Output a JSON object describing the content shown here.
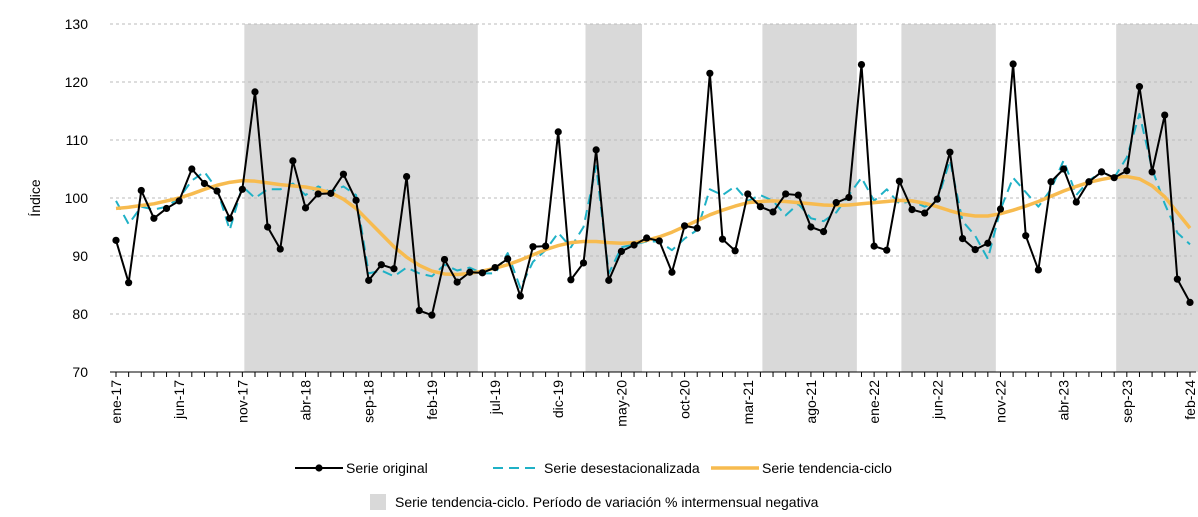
{
  "chart_data": {
    "type": "line",
    "y_label": "Índice",
    "categories": [
      "ene-17",
      null,
      null,
      null,
      null,
      "jun-17",
      null,
      null,
      null,
      null,
      "nov-17",
      null,
      null,
      null,
      null,
      "abr-18",
      null,
      null,
      null,
      null,
      "sep-18",
      null,
      null,
      null,
      null,
      "feb-19",
      null,
      null,
      null,
      null,
      "jul-19",
      null,
      null,
      null,
      null,
      "dic-19",
      null,
      null,
      null,
      null,
      "may-20",
      null,
      null,
      null,
      null,
      "oct-20",
      null,
      null,
      null,
      null,
      "mar-21",
      null,
      null,
      null,
      null,
      "ago-21",
      null,
      null,
      null,
      null,
      "ene-22",
      null,
      null,
      null,
      null,
      "jun-22",
      null,
      null,
      null,
      null,
      "nov-22",
      null,
      null,
      null,
      null,
      "abr-23",
      null,
      null,
      null,
      null,
      "sep-23",
      null,
      null,
      null,
      null,
      "feb-24"
    ],
    "series": [
      {
        "name": "Serie original",
        "color": "#000000",
        "style": "markers",
        "values": [
          92.7,
          85.4,
          101.3,
          96.5,
          98.2,
          99.5,
          105,
          102.5,
          101.2,
          96.5,
          101.5,
          118.3,
          95,
          91.2,
          106.4,
          98.3,
          100.7,
          100.8,
          104.1,
          99.6,
          85.8,
          88.5,
          87.8,
          103.7,
          80.6,
          79.8,
          89.4,
          85.5,
          87.2,
          87.1,
          88,
          89.5,
          83.1,
          91.6,
          91.7,
          111.4,
          85.9,
          88.8,
          108.3,
          85.8,
          90.8,
          91.9,
          93.1,
          92.6,
          87.2,
          95.2,
          94.8,
          121.5,
          92.9,
          90.9,
          100.7,
          98.5,
          97.6,
          100.7,
          100.5,
          95,
          94.2,
          99.2,
          100.1,
          123,
          91.7,
          91,
          102.9,
          98,
          97.4,
          99.8,
          107.9,
          93,
          91.1,
          92.2,
          98.1,
          123.1,
          93.5,
          87.6,
          102.8,
          105,
          99.3,
          102.8,
          104.5,
          103.5,
          104.7,
          119.2,
          104.5,
          114.3,
          86,
          82
        ]
      },
      {
        "name": "Serie desestacionalizada",
        "color": "#1fb1c6",
        "style": "dashed",
        "values": [
          99.5,
          95.5,
          98.5,
          98,
          98.5,
          100,
          103,
          104.5,
          101.5,
          94.5,
          102,
          100,
          101.5,
          101.5,
          102.5,
          100.5,
          102,
          101,
          102,
          100.5,
          87,
          87.5,
          86.5,
          88,
          87,
          86.5,
          88.5,
          87.5,
          88,
          87,
          87,
          90.5,
          84.5,
          89,
          91,
          94,
          91.5,
          95,
          105.5,
          87,
          91.5,
          92,
          92.5,
          92.5,
          91,
          93,
          94.5,
          101.5,
          100.5,
          102,
          99.5,
          100.5,
          99.5,
          97,
          99,
          96.5,
          96,
          97.5,
          100.5,
          103.5,
          99.5,
          101.5,
          99,
          99.5,
          98.5,
          99.5,
          106.5,
          96,
          93.5,
          89.5,
          98,
          103.5,
          101,
          98.5,
          101.5,
          106.5,
          100.5,
          103,
          104.5,
          103.5,
          107,
          114.5,
          105,
          99,
          94,
          92
        ]
      },
      {
        "name": "Serie tendencia-ciclo",
        "color": "#f7bb4f",
        "style": "thick",
        "values": [
          98.2,
          98.4,
          98.7,
          99,
          99.5,
          100,
          100.7,
          101.5,
          102.2,
          102.7,
          103,
          102.9,
          102.6,
          102.3,
          102.1,
          101.9,
          101.5,
          100.9,
          99.8,
          98.2,
          96,
          93.8,
          91.6,
          89.8,
          88.4,
          87.4,
          86.9,
          86.8,
          87,
          87.4,
          87.9,
          88.5,
          89.3,
          90.2,
          91.1,
          91.8,
          92.3,
          92.5,
          92.5,
          92.3,
          92.2,
          92.3,
          92.7,
          93.3,
          94.1,
          95.1,
          96.1,
          97.1,
          97.9,
          98.6,
          99.2,
          99.4,
          99.5,
          99.4,
          99.2,
          99,
          98.8,
          98.7,
          98.8,
          99,
          99.2,
          99.4,
          99.6,
          99.5,
          99.1,
          98.5,
          97.8,
          97.2,
          96.9,
          96.9,
          97.3,
          97.9,
          98.6,
          99.4,
          100.3,
          101.2,
          102,
          102.7,
          103.2,
          103.6,
          103.7,
          103.3,
          102.1,
          100.2,
          97.5,
          94.8
        ]
      }
    ],
    "shaded_periods": [
      [
        10,
        28
      ],
      [
        37,
        41
      ],
      [
        51,
        58
      ],
      [
        62,
        69
      ],
      [
        79,
        85
      ]
    ],
    "shaded_label": "Serie tendencia-ciclo. Período de variación % intermensual negativa",
    "shaded_color": "#d9d9d9",
    "ylim": [
      70,
      130
    ],
    "yticks": [
      70,
      80,
      90,
      100,
      110,
      120,
      130
    ],
    "grid": true
  }
}
